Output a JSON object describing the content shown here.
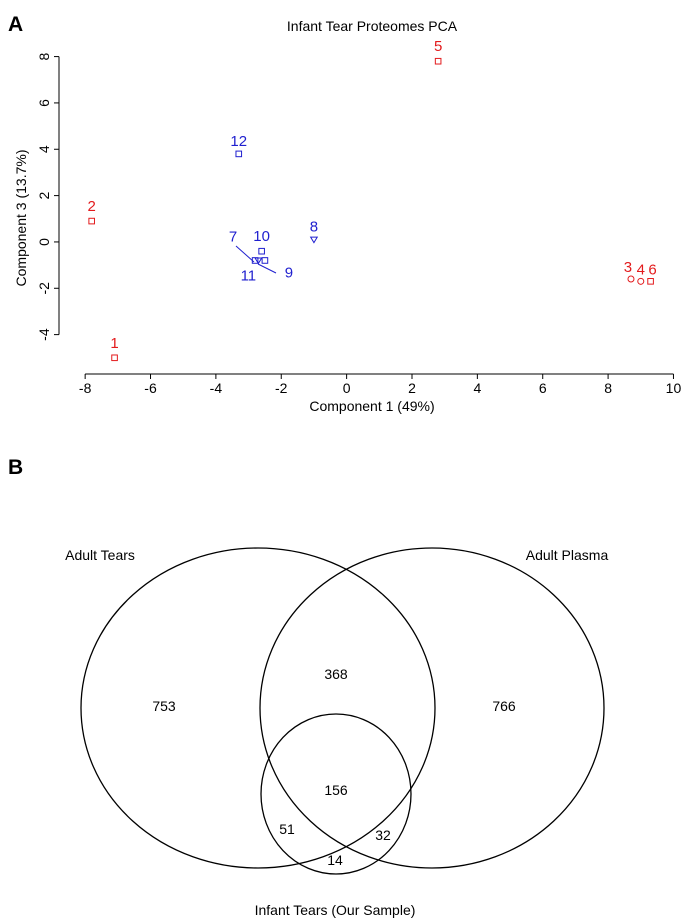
{
  "panels": {
    "a": "A",
    "b": "B"
  },
  "chart_data": [
    {
      "type": "scatter",
      "title": "Infant Tear Proteomes PCA",
      "xlabel": "Component 1 (49%)",
      "ylabel": "Component 3 (13.7%)",
      "xlim": [
        -8.8,
        10.2
      ],
      "ylim": [
        -5.7,
        8.5
      ],
      "xticks": [
        -8,
        -6,
        -4,
        -2,
        0,
        2,
        4,
        6,
        8,
        10
      ],
      "yticks": [
        -4,
        -2,
        0,
        2,
        4,
        6,
        8
      ],
      "colors": {
        "red": "#e31a1c",
        "blue": "#1f1fcf"
      },
      "points": [
        {
          "label": "1",
          "x": -7.1,
          "y": -5.0,
          "marker": "square",
          "color": "red"
        },
        {
          "label": "2",
          "x": -7.8,
          "y": 0.9,
          "marker": "square",
          "color": "red"
        },
        {
          "label": "3",
          "x": 8.7,
          "y": -1.6,
          "marker": "circle",
          "color": "red"
        },
        {
          "label": "4",
          "x": 9.0,
          "y": -1.7,
          "marker": "circle",
          "color": "red"
        },
        {
          "label": "5",
          "x": 2.8,
          "y": 7.8,
          "marker": "square",
          "color": "red"
        },
        {
          "label": "6",
          "x": 9.3,
          "y": -1.7,
          "marker": "square",
          "color": "red"
        },
        {
          "label": "7",
          "x": -2.8,
          "y": -0.8,
          "marker": "square",
          "color": "blue"
        },
        {
          "label": "8",
          "x": -1.0,
          "y": 0.1,
          "marker": "triangle",
          "color": "blue"
        },
        {
          "label": "9",
          "x": -2.5,
          "y": -0.8,
          "marker": "square",
          "color": "blue"
        },
        {
          "label": "10",
          "x": -2.6,
          "y": -0.4,
          "marker": "square",
          "color": "blue"
        },
        {
          "label": "11",
          "x": -2.7,
          "y": -0.8,
          "marker": "triangle",
          "color": "blue"
        },
        {
          "label": "12",
          "x": -3.3,
          "y": 3.8,
          "marker": "square",
          "color": "blue"
        }
      ]
    },
    {
      "type": "venn",
      "sets": [
        "Adult Tears",
        "Adult Plasma",
        "Infant Tears (Our Sample)"
      ],
      "regions": {
        "tears_only": 753,
        "tears_plasma": 368,
        "plasma_only": 766,
        "all_three": 156,
        "tears_infant": 51,
        "plasma_infant": 32,
        "infant_only": 14
      }
    }
  ]
}
